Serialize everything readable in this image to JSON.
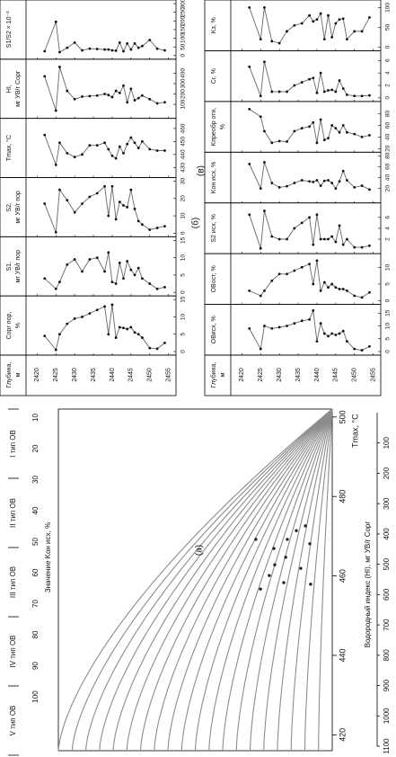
{
  "chart_data": [
    {
      "type": "nomogram",
      "panel_label": "(а)",
      "legend": [
        "V тип ОВ",
        "IV тип ОВ",
        "III тип ОВ",
        "II тип ОВ",
        "I тип ОВ"
      ],
      "x_label": "Tmax, °C",
      "xlim": [
        416,
        502
      ],
      "xticks": [
        420,
        440,
        460,
        480,
        500
      ],
      "k_label": "Значение Kон исх, %",
      "klim": [
        0,
        100
      ],
      "kticks": [
        100,
        90,
        80,
        70,
        60,
        50,
        40,
        30,
        20,
        10
      ],
      "hi_label": "Водородный индекс (HI), мг УВ/г Cорг",
      "hilim": [
        0,
        1100
      ],
      "hiticks": [
        1100,
        1000,
        900,
        800,
        700,
        600,
        500,
        400,
        300,
        200,
        100
      ],
      "isolines": [
        100,
        95,
        90,
        85,
        80,
        75,
        70,
        65,
        60,
        55,
        50,
        45,
        40,
        35,
        30,
        25,
        20,
        15,
        10,
        5
      ],
      "color": "#8c8c8c",
      "points": {
        "x": [
          456.7,
          460.1,
          462.8,
          464.7,
          469.2,
          466.9,
          469.2,
          471.4,
          472.6,
          468.1,
          461.9,
          458.3,
          457.9
        ],
        "y": [
          26.2,
          23,
          21,
          17,
          27.9,
          21.3,
          16.4,
          13.1,
          9.8,
          8.2,
          11.5,
          17.7,
          7.9
        ]
      }
    },
    {
      "type": "well_log",
      "panel_label": "(б)",
      "depth_label": [
        "Глубина,",
        "м"
      ],
      "depth": [
        2422,
        2425,
        2426,
        2428,
        2430,
        2432,
        2434,
        2436,
        2438,
        2439,
        2440,
        2441,
        2442,
        2443,
        2444,
        2445,
        2446,
        2447,
        2448,
        2450,
        2452,
        2454
      ],
      "depth_lim": [
        2418,
        2457
      ],
      "depth_ticks": [
        2420,
        2425,
        2430,
        2435,
        2440,
        2445,
        2450,
        2455
      ],
      "panels": [
        {
          "name": [
            "Cорг пор,",
            "%"
          ],
          "ylim": [
            0,
            15
          ],
          "yticks": [
            0,
            5,
            10,
            15
          ],
          "values": [
            4.5,
            0.5,
            5,
            8,
            9.5,
            10,
            11,
            12,
            13,
            5,
            13.5,
            4,
            7,
            6.8,
            6.5,
            7,
            5.5,
            5,
            4,
            1,
            0.8,
            2.5
          ]
        },
        {
          "name": [
            "S1,",
            "мг УВ/г пор"
          ],
          "ylim": [
            0,
            15
          ],
          "yticks": [
            0,
            5,
            10,
            15
          ],
          "values": [
            4,
            1,
            3,
            8,
            9.5,
            6,
            9.5,
            10,
            6,
            11.5,
            3,
            2.5,
            8.5,
            4,
            9,
            6.5,
            5,
            7,
            4,
            2.5,
            1,
            1.5
          ]
        },
        {
          "name": [
            "S2,",
            "мг УВ/г пор"
          ],
          "ylim": [
            0,
            30
          ],
          "yticks": [
            0,
            10,
            20,
            30
          ],
          "values": [
            17,
            0.5,
            25,
            19,
            12,
            17,
            21,
            23,
            27,
            10,
            27,
            8,
            18,
            16,
            15,
            25,
            14,
            7,
            5,
            2,
            3,
            4
          ]
        },
        {
          "name": [
            "Tmax, °C"
          ],
          "ylim": [
            425,
            465
          ],
          "yticks": [
            430,
            440,
            450,
            460
          ],
          "values": [
            455,
            432,
            449,
            441,
            438,
            440,
            447,
            447,
            449,
            444,
            439,
            437,
            446,
            441,
            448,
            453,
            449,
            445,
            450,
            444,
            443,
            443
          ]
        },
        {
          "name": [
            "HI,",
            "мг УВ/г Cорг"
          ],
          "ylim": [
            0,
            500
          ],
          "yticks": [
            100,
            200,
            300,
            400
          ],
          "values": [
            370,
            40,
            460,
            230,
            150,
            175,
            180,
            185,
            200,
            190,
            170,
            230,
            210,
            280,
            120,
            250,
            140,
            160,
            185,
            150,
            110,
            120
          ]
        },
        {
          "name": [
            "S1/S2 × 10⁻²"
          ],
          "ylim": [
            0,
            300
          ],
          "yticks": [
            0,
            50,
            100,
            150,
            200,
            250,
            300
          ],
          "values": [
            25,
            195,
            20,
            45,
            75,
            30,
            40,
            38,
            35,
            35,
            30,
            28,
            75,
            25,
            70,
            35,
            70,
            45,
            55,
            90,
            40,
            30
          ]
        }
      ]
    },
    {
      "type": "well_log",
      "panel_label": "(в)",
      "depth_label": [
        "Глубина,",
        "м"
      ],
      "depth": [
        2422,
        2425,
        2426,
        2428,
        2430,
        2432,
        2434,
        2436,
        2438,
        2439,
        2440,
        2441,
        2442,
        2443,
        2444,
        2445,
        2446,
        2447,
        2448,
        2450,
        2452,
        2454
      ],
      "depth_lim": [
        2418,
        2457
      ],
      "depth_ticks": [
        2420,
        2425,
        2430,
        2435,
        2440,
        2445,
        2450,
        2455
      ],
      "panels": [
        {
          "name": [
            "OBисх, %"
          ],
          "ylim": [
            0,
            17
          ],
          "yticks": [
            0,
            5,
            10,
            15
          ],
          "values": [
            9,
            1,
            10,
            9,
            9.5,
            10,
            11,
            12,
            12.5,
            16,
            4,
            11,
            7,
            6,
            7,
            6.5,
            7,
            8,
            4,
            1,
            0.5,
            2
          ]
        },
        {
          "name": [
            "OBост, %"
          ],
          "ylim": [
            0,
            13
          ],
          "yticks": [
            0,
            5,
            10
          ],
          "values": [
            3,
            1.5,
            3,
            6,
            8,
            8,
            9,
            10,
            11,
            5,
            12,
            3,
            5.5,
            4,
            5,
            4,
            3.5,
            3.5,
            3,
            1.5,
            1,
            2.5
          ]
        },
        {
          "name": [
            "S2 исх, %"
          ],
          "ylim": [
            0,
            8
          ],
          "yticks": [
            2,
            4,
            6
          ],
          "values": [
            6.5,
            0.3,
            7.2,
            2.5,
            2,
            2,
            4,
            5,
            6,
            1,
            6.5,
            2,
            2,
            2,
            2.5,
            1.5,
            4.5,
            1,
            2,
            0.5,
            0.5,
            0.8
          ]
        },
        {
          "name": [
            "Kон исх, %"
          ],
          "ylim": [
            0,
            80
          ],
          "yticks": [
            20,
            40,
            60,
            80
          ],
          "values": [
            65,
            20,
            68,
            30,
            22,
            24,
            30,
            35,
            33,
            32,
            35,
            25,
            34,
            35,
            30,
            20,
            33,
            52,
            35,
            22,
            25,
            18
          ]
        },
        {
          "name": [
            "Kпреобр отн,",
            "%"
          ],
          "ylim": [
            20,
            95
          ],
          "yticks": [
            20,
            40,
            60,
            80
          ],
          "values": [
            88,
            75,
            50,
            30,
            33,
            32,
            50,
            55,
            58,
            65,
            30,
            70,
            35,
            38,
            60,
            55,
            48,
            60,
            48,
            45,
            40,
            43
          ]
        },
        {
          "name": [
            "Cr, %"
          ],
          "ylim": [
            0,
            7
          ],
          "yticks": [
            0,
            2,
            4,
            6
          ],
          "values": [
            5,
            0.3,
            5.8,
            1,
            1,
            1,
            2,
            2.5,
            3,
            3.2,
            0.8,
            4,
            1,
            1.2,
            1.3,
            1,
            2.8,
            1.5,
            0.5,
            0.3,
            0.3,
            0.4
          ]
        },
        {
          "name": [
            "Kз, %"
          ],
          "ylim": [
            0,
            110
          ],
          "yticks": [
            0,
            50,
            100
          ],
          "values": [
            100,
            20,
            100,
            15,
            10,
            40,
            55,
            60,
            80,
            65,
            70,
            85,
            20,
            80,
            25,
            60,
            70,
            72,
            20,
            40,
            40,
            75
          ]
        }
      ]
    }
  ]
}
